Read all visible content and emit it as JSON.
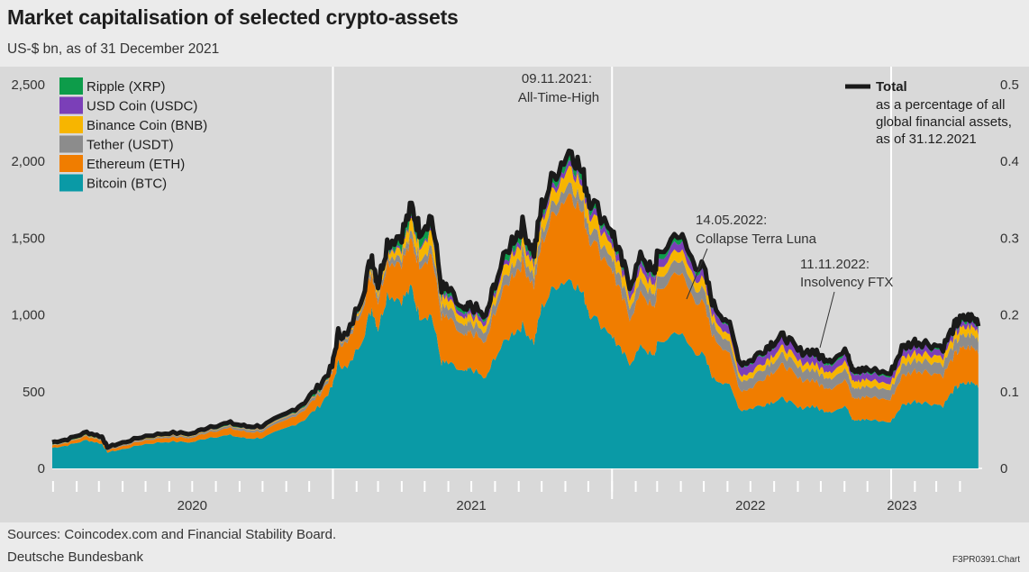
{
  "header": {
    "title": "Market capitalisation of selected crypto-assets",
    "subtitle": "US-$ bn, as of 31 December 2021"
  },
  "footer": {
    "sources": "Sources: Coincodex.com and Financial Stability Board.",
    "bank": "Deutsche Bundesbank",
    "code": "F3PR0391.Chart"
  },
  "chart_data": {
    "type": "area",
    "stacked": true,
    "x": [
      "2019-12-31",
      "2020-01-20",
      "2020-02-14",
      "2020-03-05",
      "2020-03-12",
      "2020-04-01",
      "2020-05-01",
      "2020-06-01",
      "2020-07-01",
      "2020-07-25",
      "2020-08-20",
      "2020-09-10",
      "2020-10-01",
      "2020-11-01",
      "2020-11-25",
      "2020-12-15",
      "2020-12-31",
      "2021-01-08",
      "2021-01-20",
      "2021-02-10",
      "2021-02-21",
      "2021-03-01",
      "2021-03-13",
      "2021-04-01",
      "2021-04-14",
      "2021-04-24",
      "2021-05-10",
      "2021-05-23",
      "2021-06-01",
      "2021-06-22",
      "2021-07-01",
      "2021-07-20",
      "2021-08-01",
      "2021-08-23",
      "2021-09-06",
      "2021-09-21",
      "2021-10-01",
      "2021-10-20",
      "2021-11-09",
      "2021-11-25",
      "2021-12-04",
      "2021-12-31",
      "2022-01-10",
      "2022-01-24",
      "2022-02-10",
      "2022-02-24",
      "2022-03-01",
      "2022-03-28",
      "2022-04-15",
      "2022-05-01",
      "2022-05-14",
      "2022-06-01",
      "2022-06-18",
      "2022-07-01",
      "2022-07-20",
      "2022-08-01",
      "2022-08-15",
      "2022-09-01",
      "2022-09-20",
      "2022-10-01",
      "2022-10-15",
      "2022-11-05",
      "2022-11-11",
      "2022-11-21",
      "2022-12-01",
      "2022-12-31",
      "2023-01-15",
      "2023-02-01",
      "2023-02-15",
      "2023-03-10",
      "2023-03-25",
      "2023-04-01",
      "2023-04-14",
      "2023-04-25"
    ],
    "series": [
      {
        "name": "Bitcoin (BTC)",
        "color": "#0a9aa6",
        "values": [
          135,
          150,
          185,
          160,
          105,
          125,
          160,
          175,
          170,
          205,
          215,
          195,
          200,
          260,
          320,
          410,
          530,
          690,
          645,
          870,
          1050,
          910,
          1140,
          1100,
          1170,
          1000,
          1000,
          690,
          680,
          620,
          650,
          580,
          730,
          880,
          930,
          820,
          1050,
          1200,
          1240,
          1120,
          1000,
          880,
          780,
          690,
          800,
          720,
          800,
          900,
          780,
          730,
          580,
          560,
          380,
          390,
          420,
          440,
          455,
          390,
          410,
          380,
          375,
          400,
          325,
          310,
          320,
          300,
          410,
          440,
          430,
          410,
          520,
          540,
          560,
          540
        ]
      },
      {
        "name": "Ethereum (ETH)",
        "color": "#f07d00",
        "values": [
          15,
          18,
          25,
          22,
          13,
          20,
          25,
          28,
          28,
          38,
          45,
          42,
          40,
          50,
          65,
          75,
          85,
          140,
          160,
          210,
          230,
          180,
          215,
          250,
          300,
          340,
          400,
          300,
          290,
          225,
          240,
          230,
          300,
          380,
          410,
          370,
          420,
          500,
          570,
          510,
          490,
          440,
          380,
          300,
          350,
          310,
          330,
          400,
          350,
          330,
          270,
          210,
          130,
          130,
          180,
          200,
          220,
          190,
          170,
          160,
          155,
          170,
          150,
          140,
          150,
          145,
          190,
          200,
          205,
          200,
          220,
          230,
          230,
          225
        ]
      },
      {
        "name": "Tether (USDT)",
        "color": "#8c8c8c",
        "values": [
          4,
          4,
          5,
          5,
          5,
          6,
          8,
          10,
          10,
          11,
          12,
          15,
          15,
          17,
          18,
          20,
          21,
          24,
          26,
          32,
          34,
          38,
          40,
          44,
          48,
          50,
          55,
          61,
          62,
          62,
          62,
          62,
          63,
          66,
          68,
          68,
          69,
          70,
          73,
          73,
          74,
          78,
          78,
          78,
          78,
          78,
          79,
          80,
          82,
          83,
          80,
          72,
          66,
          66,
          66,
          67,
          67,
          68,
          68,
          68,
          68,
          69,
          67,
          66,
          66,
          66,
          68,
          69,
          71,
          73,
          76,
          79,
          80,
          81
        ]
      },
      {
        "name": "Binance Coin (BNB)",
        "color": "#f7b500",
        "values": [
          2,
          2,
          3,
          3,
          2,
          2,
          3,
          3,
          3,
          3,
          3,
          3,
          4,
          4,
          4,
          5,
          6,
          7,
          7,
          20,
          35,
          35,
          40,
          55,
          85,
          80,
          100,
          60,
          55,
          45,
          50,
          45,
          55,
          75,
          80,
          70,
          80,
          85,
          110,
          95,
          92,
          85,
          75,
          60,
          70,
          60,
          62,
          70,
          65,
          65,
          50,
          48,
          35,
          38,
          40,
          45,
          48,
          45,
          43,
          42,
          44,
          50,
          48,
          45,
          46,
          38,
          48,
          50,
          48,
          47,
          50,
          52,
          53,
          52
        ]
      },
      {
        "name": "USD Coin (USDC)",
        "color": "#7b3fb8",
        "values": [
          0,
          0,
          0,
          1,
          1,
          1,
          1,
          1,
          1,
          2,
          2,
          2,
          2,
          3,
          3,
          3,
          4,
          5,
          5,
          6,
          8,
          9,
          10,
          12,
          12,
          13,
          14,
          20,
          24,
          26,
          27,
          28,
          27,
          27,
          28,
          30,
          32,
          33,
          35,
          38,
          40,
          42,
          44,
          45,
          48,
          50,
          52,
          52,
          50,
          48,
          52,
          54,
          56,
          55,
          55,
          54,
          53,
          50,
          49,
          47,
          45,
          44,
          44,
          43,
          42,
          44,
          43,
          42,
          40,
          39,
          34,
          32,
          31,
          30
        ]
      },
      {
        "name": "Ripple (XRP)",
        "color": "#0d9c4a",
        "values": [
          9,
          10,
          12,
          10,
          7,
          8,
          9,
          9,
          9,
          11,
          13,
          11,
          11,
          12,
          18,
          25,
          11,
          13,
          13,
          22,
          25,
          22,
          25,
          65,
          80,
          70,
          70,
          45,
          40,
          30,
          30,
          28,
          35,
          55,
          60,
          45,
          50,
          52,
          58,
          48,
          43,
          40,
          36,
          30,
          40,
          35,
          40,
          40,
          33,
          30,
          22,
          18,
          15,
          16,
          18,
          17,
          16,
          15,
          20,
          24,
          23,
          23,
          22,
          19,
          20,
          18,
          20,
          21,
          20,
          18,
          24,
          25,
          26,
          24
        ]
      }
    ],
    "total": {
      "name": "Total",
      "color": "#1a1a1a",
      "note": "as a percentage of all global financial assets, as of 31.12.2021"
    },
    "y_left": {
      "ticks": [
        "0",
        "500",
        "1,000",
        "1,500",
        "2,000",
        "2,500"
      ],
      "range": [
        0,
        2500
      ]
    },
    "y_right": {
      "ticks": [
        "0",
        "0.1",
        "0.2",
        "0.3",
        "0.4",
        "0.5"
      ],
      "range": [
        0,
        0.5
      ]
    },
    "x_labels": [
      "2020",
      "2021",
      "2022",
      "2023"
    ],
    "annotations": [
      {
        "line1": "09.11.2021:",
        "line2": "All-Time-High",
        "date": "2021-11-09"
      },
      {
        "line1": "14.05.2022:",
        "line2": "Collapse Terra Luna",
        "date": "2022-05-14"
      },
      {
        "line1": "11.11.2022:",
        "line2": "Insolvency FTX",
        "date": "2022-11-11"
      }
    ],
    "legend_position": "top-left",
    "grid": "vertical-year-lines"
  }
}
